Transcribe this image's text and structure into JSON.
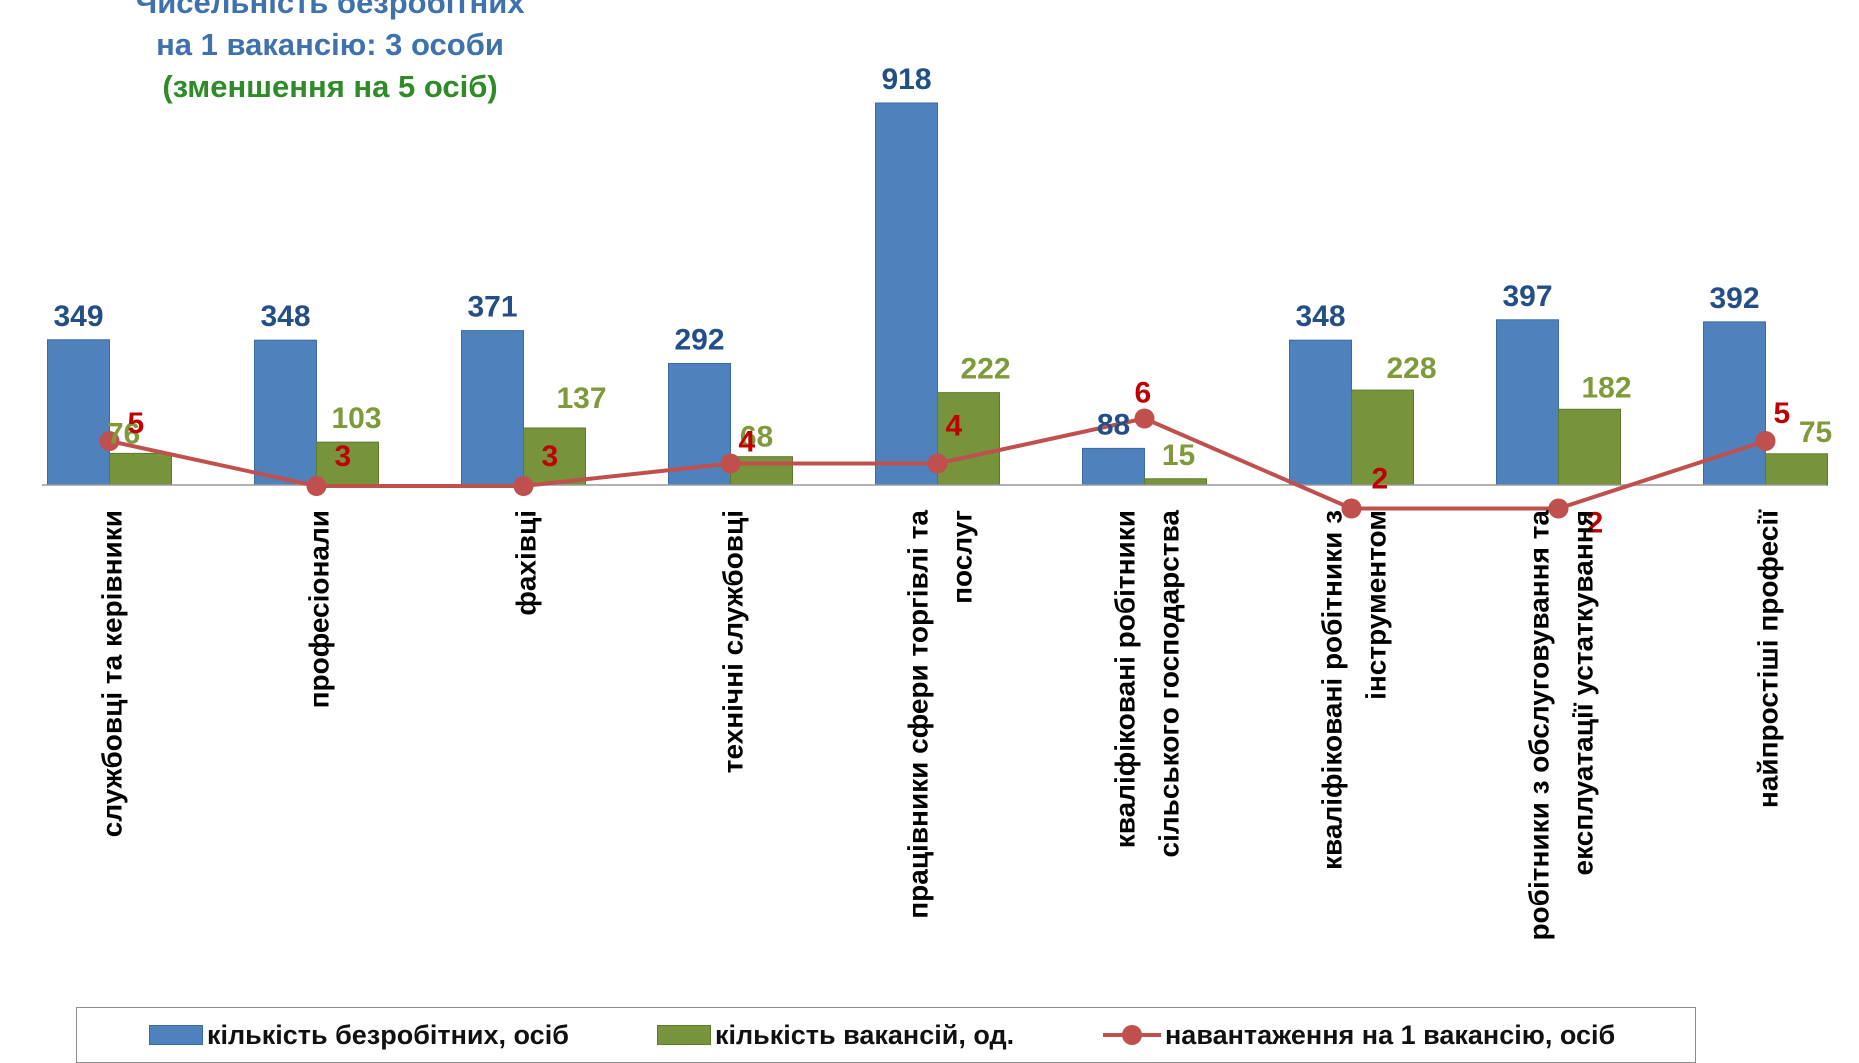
{
  "annotation": {
    "line1": "Чисельність безробітних",
    "line2": "на 1 вакансію: 3 особи",
    "line3": "(зменшення на 5 осіб)"
  },
  "colors": {
    "unemployed": "#4f81bd",
    "vacancies": "#77933c",
    "load": "#c0504d",
    "unemployed_label": "#244e86",
    "vacancies_label": "#7f9a3a",
    "load_label": "#c00000"
  },
  "chart_data": {
    "type": "bar",
    "categories": [
      "службовці та керівники",
      "професіонали",
      "фахівці",
      "технічні службовці",
      "працівники сфери торгівлі та послуг",
      "кваліфіковані робітники сільського господарства",
      "кваліфіковані робітники з інструментом",
      "робітники з обслуговування та експлуатації устаткування",
      "найпростіші професії"
    ],
    "category_lines": [
      [
        "службовці та керівники"
      ],
      [
        "професіонали"
      ],
      [
        "фахівці"
      ],
      [
        "технічні службовці"
      ],
      [
        "працівники сфери торгівлі та",
        "послуг"
      ],
      [
        "кваліфіковані робітники",
        "сільського господарства"
      ],
      [
        "кваліфіковані робітники з",
        "інструментом"
      ],
      [
        "робітники з обслуговування та",
        "експлуатації устаткування"
      ],
      [
        "найпростіші професії"
      ]
    ],
    "series": [
      {
        "name": "кількість безробітних,  осіб",
        "type": "bar",
        "values": [
          349,
          348,
          371,
          292,
          918,
          88,
          348,
          397,
          392
        ]
      },
      {
        "name": "кількість вакансій,  од.",
        "type": "bar",
        "values": [
          76,
          103,
          137,
          68,
          222,
          15,
          228,
          182,
          75
        ]
      },
      {
        "name": "навантаження на 1 вакансію, осіб",
        "type": "line",
        "values": [
          5,
          3,
          3,
          4,
          4,
          6,
          2,
          2,
          5
        ]
      }
    ],
    "legend_position": "bottom",
    "grid": false
  }
}
